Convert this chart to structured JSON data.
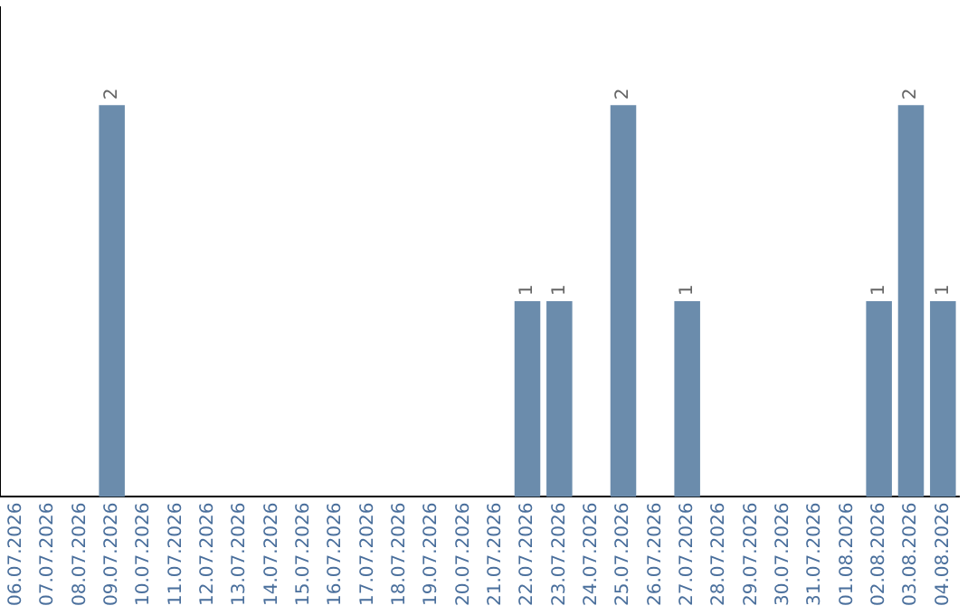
{
  "chart_data": {
    "type": "bar",
    "categories": [
      "06.07.2026",
      "07.07.2026",
      "08.07.2026",
      "09.07.2026",
      "10.07.2026",
      "11.07.2026",
      "12.07.2026",
      "13.07.2026",
      "14.07.2026",
      "15.07.2026",
      "16.07.2026",
      "17.07.2026",
      "18.07.2026",
      "19.07.2026",
      "20.07.2026",
      "21.07.2026",
      "22.07.2026",
      "23.07.2026",
      "24.07.2026",
      "25.07.2026",
      "26.07.2026",
      "27.07.2026",
      "28.07.2026",
      "29.07.2026",
      "30.07.2026",
      "31.07.2026",
      "01.08.2026",
      "02.08.2026",
      "03.08.2026",
      "04.08.2026"
    ],
    "values": [
      0,
      0,
      0,
      2,
      0,
      0,
      0,
      0,
      0,
      0,
      0,
      0,
      0,
      0,
      0,
      0,
      1,
      1,
      0,
      2,
      0,
      1,
      0,
      0,
      0,
      0,
      0,
      1,
      2,
      1
    ],
    "value_labels": [
      null,
      null,
      null,
      "2",
      null,
      null,
      null,
      null,
      null,
      null,
      null,
      null,
      null,
      null,
      null,
      null,
      "1",
      "1",
      null,
      "2",
      null,
      "1",
      null,
      null,
      null,
      null,
      null,
      "1",
      "2",
      "1"
    ],
    "color": "#6b8cac",
    "grid": false,
    "legend": false,
    "tick_labels": "x"
  }
}
